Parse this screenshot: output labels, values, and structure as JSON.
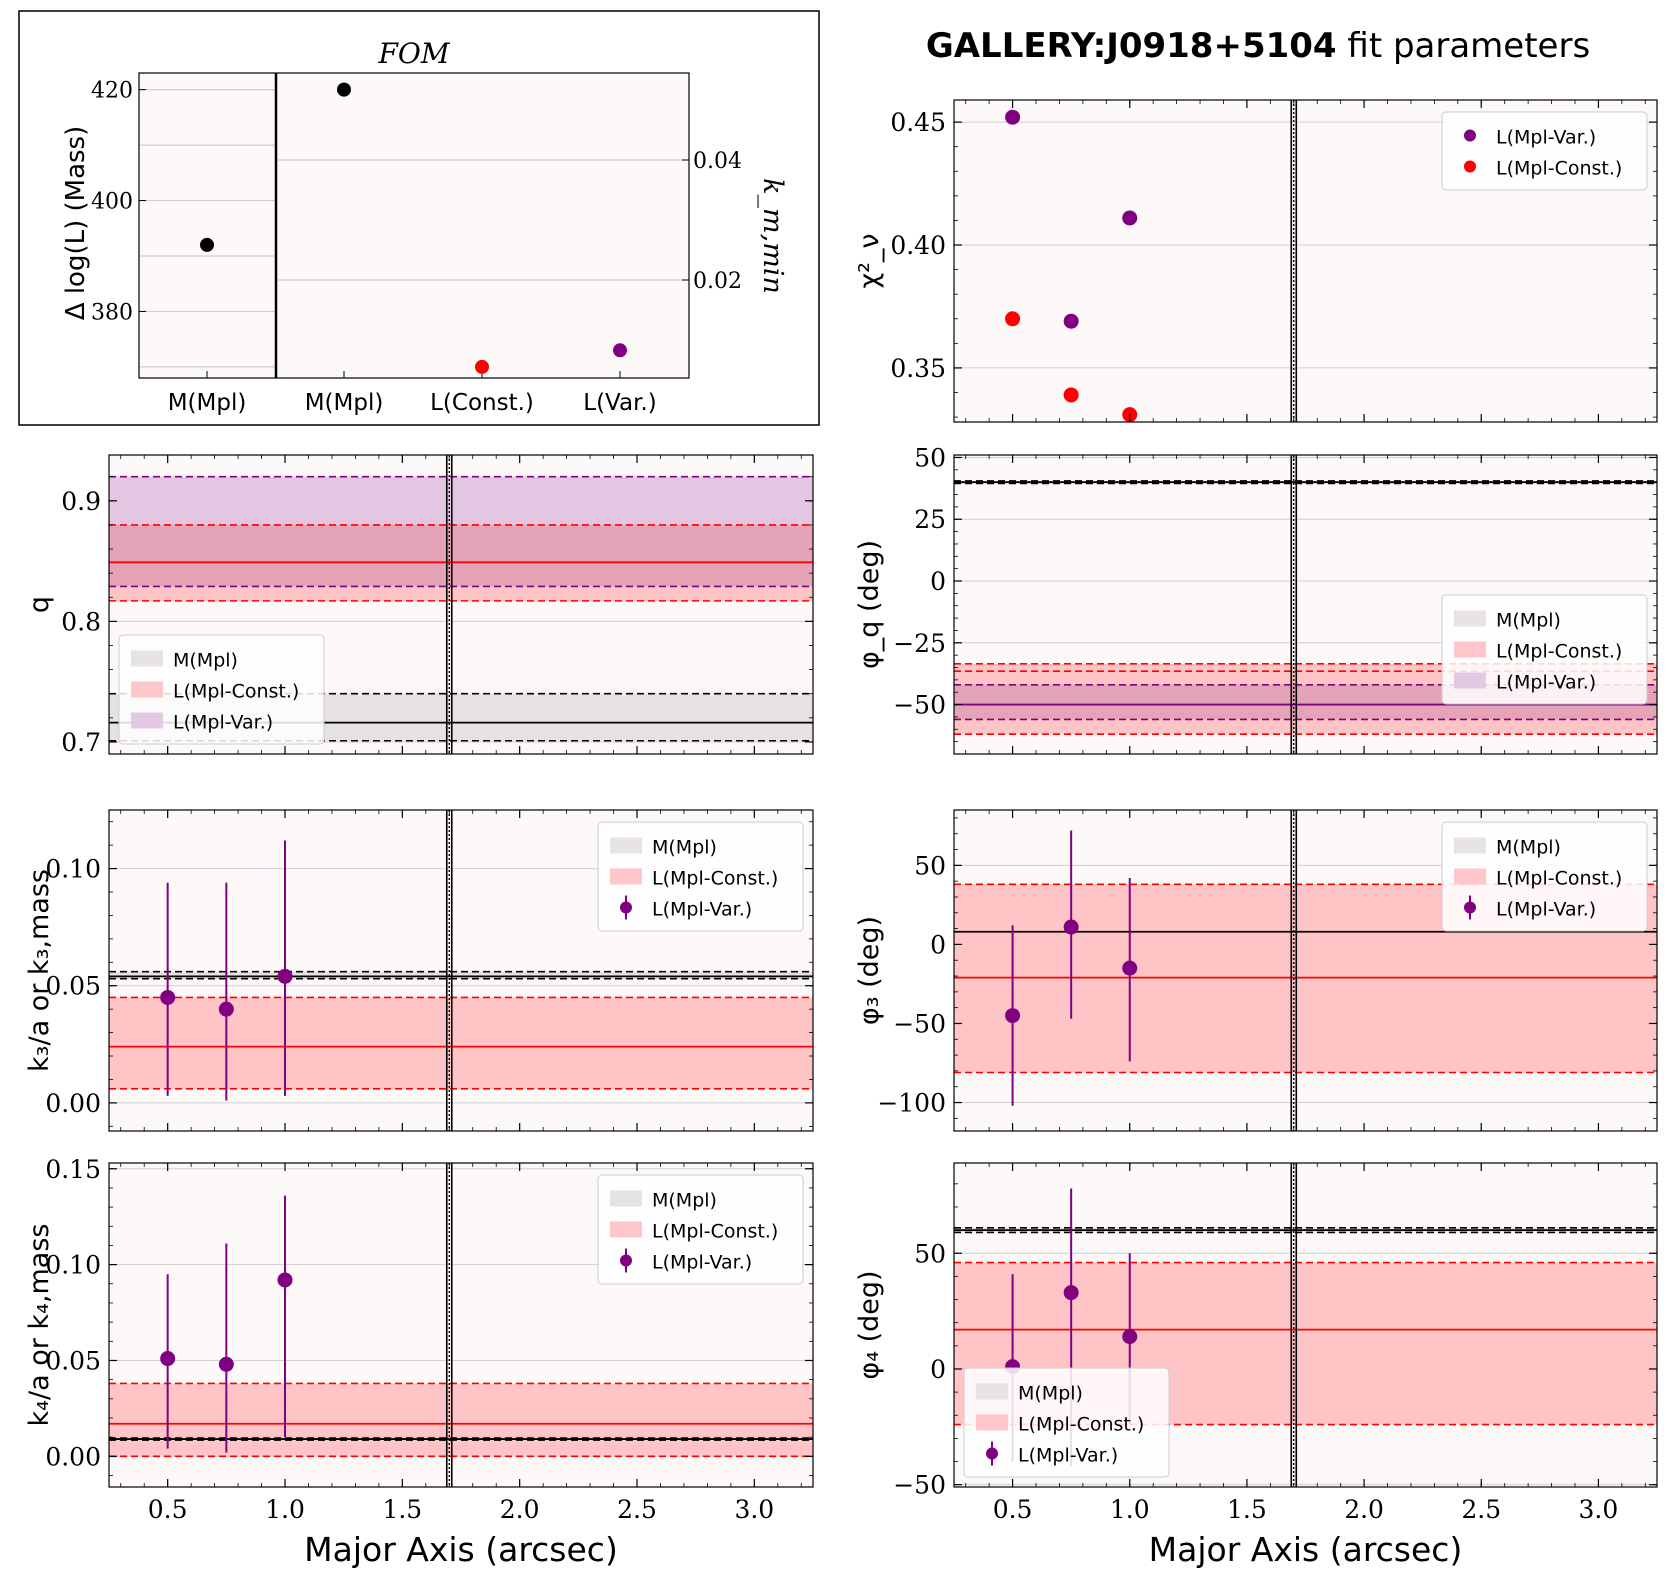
{
  "title": {
    "name": "GALLERY:J0918+5104",
    "suffix": " fit parameters"
  },
  "colors": {
    "mass": "#000000",
    "const": "#ff0000",
    "var": "#800080",
    "mass_fill": "#e6e2e2",
    "const_fill": "#ffc4c6",
    "var_fill": "#e2c6e2",
    "overlap_fill": "#e4a3b6",
    "panel_bg": "#fdf9f9",
    "grid": "#cfcfcf"
  },
  "fom": {
    "title": "FOM",
    "ylabel_left": "Δ log(L) (Mass)",
    "ylabel_right": "k_m,min",
    "left": {
      "category": "M(Mpl)",
      "value": 392,
      "ylim": [
        368,
        423
      ],
      "yticks": [
        380,
        400,
        420
      ]
    },
    "right": {
      "categories": [
        "M(Mpl)",
        "L(Const.)",
        "L(Var.)"
      ],
      "values": [
        420,
        370,
        373
      ],
      "colors": [
        "#000000",
        "#ff0000",
        "#800080"
      ],
      "ylim": [
        368,
        423
      ],
      "right_ticks": [
        "0.02",
        "0.04"
      ]
    }
  },
  "chart_data": [
    {
      "type": "scatter",
      "id": "chi2",
      "ylabel": "χ²_ν",
      "ylim": [
        0.328,
        0.459
      ],
      "yticks": [
        0.35,
        0.4,
        0.45
      ],
      "ytick_labels": [
        "0.35",
        "0.40",
        "0.45"
      ],
      "xlim": [
        0.25,
        3.25
      ],
      "vline": 1.7,
      "series": [
        {
          "name": "L(Mpl-Var.)",
          "color": "#800080",
          "x": [
            0.5,
            0.75,
            1.0
          ],
          "y": [
            0.452,
            0.369,
            0.411
          ]
        },
        {
          "name": "L(Mpl-Const.)",
          "color": "#ff0000",
          "x": [
            0.5,
            0.75,
            1.0
          ],
          "y": [
            0.37,
            0.339,
            0.331
          ]
        }
      ],
      "legend": {
        "entries": [
          {
            "label": "L(Mpl-Var.)",
            "kind": "dot",
            "color": "#800080"
          },
          {
            "label": "L(Mpl-Const.)",
            "kind": "dot",
            "color": "#ff0000"
          }
        ],
        "loc": "upper-right"
      }
    },
    {
      "type": "band",
      "id": "q",
      "ylabel": "q",
      "ylim": [
        0.69,
        0.938
      ],
      "yticks": [
        0.7,
        0.8,
        0.9
      ],
      "ytick_labels": [
        "0.7",
        "0.8",
        "0.9"
      ],
      "xlim": [
        0.25,
        3.25
      ],
      "vline": 1.7,
      "bands": [
        {
          "name": "M(Mpl)",
          "center": 0.716,
          "low": 0.701,
          "high": 0.74,
          "fill": "#e6e2e2",
          "line": "#000000"
        },
        {
          "name": "L(Mpl-Const.)",
          "center": 0.849,
          "low": 0.817,
          "high": 0.88,
          "fill": "#ffc4c6",
          "line": "#ff0000"
        },
        {
          "name": "L(Mpl-Var.)",
          "low": 0.829,
          "high": 0.92,
          "fill": "#e2c6e2",
          "line": "#800080"
        }
      ],
      "overlap": {
        "low": 0.829,
        "high": 0.88
      },
      "legend": {
        "entries": [
          {
            "label": "M(Mpl)",
            "kind": "patch",
            "color": "#e6e2e2"
          },
          {
            "label": "L(Mpl-Const.)",
            "kind": "patch",
            "color": "#ffc4c6"
          },
          {
            "label": "L(Mpl-Var.)",
            "kind": "patch",
            "color": "#e2c6e2"
          }
        ],
        "loc": "lower-left"
      }
    },
    {
      "type": "band",
      "id": "phiq",
      "ylabel": "φ_q (deg)",
      "ylim": [
        -70,
        51
      ],
      "yticks": [
        -50,
        -25,
        0,
        25,
        50
      ],
      "ytick_labels": [
        "−50",
        "−25",
        "0",
        "25",
        "50"
      ],
      "xlim": [
        0.25,
        3.25
      ],
      "vline": 1.7,
      "bands": [
        {
          "name": "M(Mpl)",
          "center": 40,
          "low": 39.5,
          "high": 40.5,
          "fill": "#e6e2e2",
          "line": "#000000"
        },
        {
          "name": "L(Mpl-Const.)",
          "low": -62,
          "high": -33.5,
          "fill": "#ffc4c6",
          "line": "#ff0000"
        },
        {
          "name": "L(Mpl-Var.)",
          "center": -50,
          "low": -56,
          "high": -42,
          "fill": "#e2c6e2",
          "line": "#800080"
        }
      ],
      "overlap": {
        "low": -56,
        "high": -42
      },
      "extra_lines": [
        {
          "value": -36.5,
          "color": "#ff0000",
          "dash": true
        }
      ],
      "legend": {
        "entries": [
          {
            "label": "M(Mpl)",
            "kind": "patch",
            "color": "#e6e2e2"
          },
          {
            "label": "L(Mpl-Const.)",
            "kind": "patch",
            "color": "#ffc4c6"
          },
          {
            "label": "L(Mpl-Var.)",
            "kind": "patch",
            "color": "#e2c6e2"
          }
        ],
        "loc": "center-right"
      }
    },
    {
      "type": "band-errorbar",
      "id": "k3",
      "ylabel": "k₃/a or k₃,mass",
      "ylim": [
        -0.012,
        0.125
      ],
      "yticks": [
        0.0,
        0.05,
        0.1
      ],
      "ytick_labels": [
        "0.00",
        "0.05",
        "0.10"
      ],
      "xlim": [
        0.25,
        3.25
      ],
      "vline": 1.7,
      "bands": [
        {
          "name": "M(Mpl)",
          "center": 0.054,
          "low": 0.053,
          "high": 0.056,
          "fill": "#e6e2e2",
          "line": "#000000"
        },
        {
          "name": "L(Mpl-Const.)",
          "center": 0.024,
          "low": 0.006,
          "high": 0.045,
          "fill": "#ffc4c6",
          "line": "#ff0000"
        }
      ],
      "series": [
        {
          "name": "L(Mpl-Var.)",
          "color": "#800080",
          "x": [
            0.5,
            0.75,
            1.0
          ],
          "y": [
            0.045,
            0.04,
            0.054
          ],
          "ylow": [
            0.003,
            0.001,
            0.003
          ],
          "yhigh": [
            0.094,
            0.094,
            0.112
          ]
        }
      ],
      "legend": {
        "entries": [
          {
            "label": "M(Mpl)",
            "kind": "patch",
            "color": "#e6e2e2"
          },
          {
            "label": "L(Mpl-Const.)",
            "kind": "patch",
            "color": "#ffc4c6"
          },
          {
            "label": "L(Mpl-Var.)",
            "kind": "errdot",
            "color": "#800080"
          }
        ],
        "loc": "upper-right"
      }
    },
    {
      "type": "band-errorbar",
      "id": "phi3",
      "ylabel": "φ₃ (deg)",
      "ylim": [
        -118,
        85
      ],
      "yticks": [
        -100,
        -50,
        0,
        50
      ],
      "ytick_labels": [
        "−100",
        "−50",
        "0",
        "50"
      ],
      "xlim": [
        0.25,
        3.25
      ],
      "vline": 1.7,
      "bands": [
        {
          "name": "M(Mpl)",
          "center": 8,
          "fill": "#e6e2e2",
          "line": "#000000"
        },
        {
          "name": "L(Mpl-Const.)",
          "center": -21,
          "low": -81,
          "high": 38,
          "fill": "#ffc4c6",
          "line": "#ff0000"
        }
      ],
      "series": [
        {
          "name": "L(Mpl-Var.)",
          "color": "#800080",
          "x": [
            0.5,
            0.75,
            1.0
          ],
          "y": [
            -45,
            11,
            -15
          ],
          "ylow": [
            -102,
            -47,
            -74
          ],
          "yhigh": [
            12,
            72,
            42
          ]
        }
      ],
      "legend": {
        "entries": [
          {
            "label": "M(Mpl)",
            "kind": "patch",
            "color": "#e6e2e2"
          },
          {
            "label": "L(Mpl-Const.)",
            "kind": "patch",
            "color": "#ffc4c6"
          },
          {
            "label": "L(Mpl-Var.)",
            "kind": "errdot",
            "color": "#800080"
          }
        ],
        "loc": "upper-right"
      }
    },
    {
      "type": "band-errorbar",
      "id": "k4",
      "ylabel": "k₄/a or k₄,mass",
      "ylim": [
        -0.016,
        0.153
      ],
      "yticks": [
        0.0,
        0.05,
        0.1,
        0.15
      ],
      "ytick_labels": [
        "0.00",
        "0.05",
        "0.10",
        "0.15"
      ],
      "xlim": [
        0.25,
        3.25
      ],
      "vline": 1.7,
      "xticks": [
        0.5,
        1.0,
        1.5,
        2.0,
        2.5,
        3.0
      ],
      "xtick_labels": [
        "0.5",
        "1.0",
        "1.5",
        "2.0",
        "2.5",
        "3.0"
      ],
      "xlabel": "Major Axis (arcsec)",
      "bands": [
        {
          "name": "M(Mpl)",
          "center": 0.009,
          "low": 0.0085,
          "high": 0.0095,
          "fill": "#e6e2e2",
          "line": "#000000"
        },
        {
          "name": "L(Mpl-Const.)",
          "center": 0.017,
          "low": 0.0,
          "high": 0.038,
          "fill": "#ffc4c6",
          "line": "#ff0000"
        }
      ],
      "series": [
        {
          "name": "L(Mpl-Var.)",
          "color": "#800080",
          "x": [
            0.5,
            0.75,
            1.0
          ],
          "y": [
            0.051,
            0.048,
            0.092
          ],
          "ylow": [
            0.004,
            0.002,
            0.01
          ],
          "yhigh": [
            0.095,
            0.111,
            0.136
          ]
        }
      ],
      "legend": {
        "entries": [
          {
            "label": "M(Mpl)",
            "kind": "patch",
            "color": "#e6e2e2"
          },
          {
            "label": "L(Mpl-Const.)",
            "kind": "patch",
            "color": "#ffc4c6"
          },
          {
            "label": "L(Mpl-Var.)",
            "kind": "errdot",
            "color": "#800080"
          }
        ],
        "loc": "upper-right"
      }
    },
    {
      "type": "band-errorbar",
      "id": "phi4",
      "ylabel": "φ₄ (deg)",
      "ylim": [
        -51,
        89
      ],
      "yticks": [
        -50,
        0,
        50
      ],
      "ytick_labels": [
        "−50",
        "0",
        "50"
      ],
      "xlim": [
        0.25,
        3.25
      ],
      "vline": 1.7,
      "xticks": [
        0.5,
        1.0,
        1.5,
        2.0,
        2.5,
        3.0
      ],
      "xtick_labels": [
        "0.5",
        "1.0",
        "1.5",
        "2.0",
        "2.5",
        "3.0"
      ],
      "xlabel": "Major Axis (arcsec)",
      "bands": [
        {
          "name": "M(Mpl)",
          "center": 60,
          "low": 59,
          "high": 61,
          "fill": "#e6e2e2",
          "line": "#000000"
        },
        {
          "name": "L(Mpl-Const.)",
          "center": 17,
          "low": -24,
          "high": 46,
          "fill": "#ffc4c6",
          "line": "#ff0000"
        }
      ],
      "series": [
        {
          "name": "L(Mpl-Var.)",
          "color": "#800080",
          "x": [
            0.5,
            0.75,
            1.0
          ],
          "y": [
            1,
            33,
            14
          ],
          "ylow": [
            -40,
            -42,
            -24
          ],
          "yhigh": [
            41,
            78,
            50
          ]
        }
      ],
      "legend": {
        "entries": [
          {
            "label": "M(Mpl)",
            "kind": "patch",
            "color": "#e6e2e2"
          },
          {
            "label": "L(Mpl-Const.)",
            "kind": "patch",
            "color": "#ffc4c6"
          },
          {
            "label": "L(Mpl-Var.)",
            "kind": "errdot",
            "color": "#800080"
          }
        ],
        "loc": "lower-left"
      }
    }
  ]
}
